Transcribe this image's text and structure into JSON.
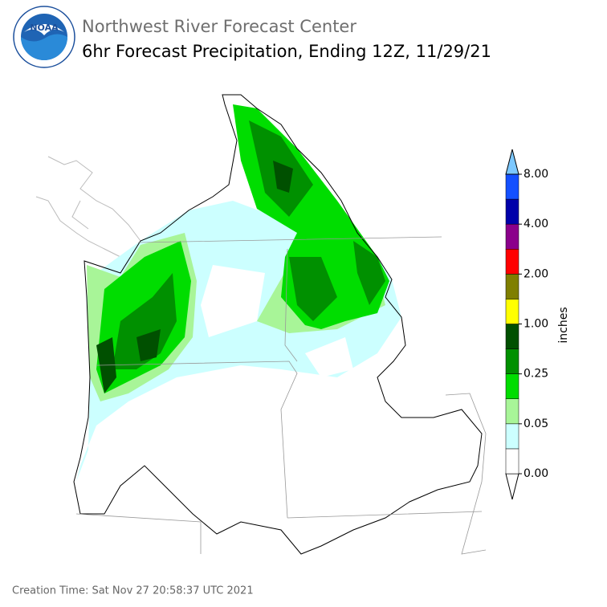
{
  "header": {
    "logo_text": "NOAA",
    "title": "Northwest River Forecast Center",
    "subtitle": "6hr Forecast Precipitation, Ending 12Z, 11/29/21"
  },
  "colorbar": {
    "label": "inches",
    "ticks": [
      "0.00",
      "0.05",
      "0.25",
      "1.00",
      "2.00",
      "4.00",
      "8.00"
    ],
    "colors": [
      "#ffffff",
      "#ccffff",
      "#a8f598",
      "#00dd00",
      "#009000",
      "#005000",
      "#ffff00",
      "#7f7f00",
      "#ff0000",
      "#8b008b",
      "#0000aa",
      "#1450ff",
      "#7cc8ff"
    ]
  },
  "footer": "Creation Time: Sat Nov 27 20:58:37 UTC 2021"
}
